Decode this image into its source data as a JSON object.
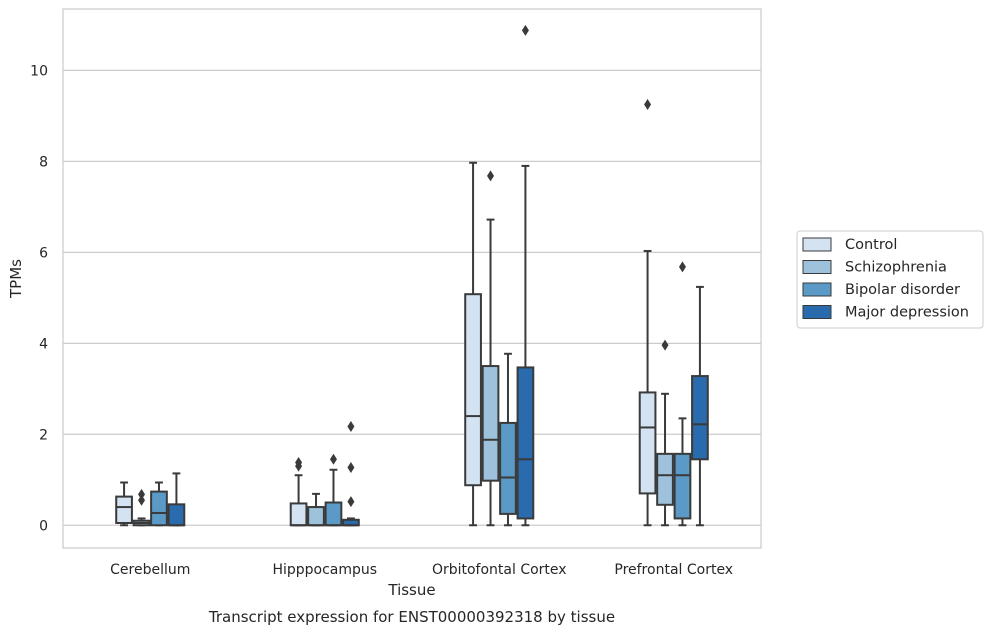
{
  "chart_data": {
    "type": "box",
    "title": "",
    "caption": "Transcript expression for ENST00000392318 by tissue",
    "xlabel": "Tissue",
    "ylabel": "TPMs",
    "ylim": [
      -0.5,
      11.35
    ],
    "yticks": [
      0,
      2,
      4,
      6,
      8,
      10
    ],
    "grid": "horizontal",
    "legend_position": "right",
    "categories": [
      "Cerebellum",
      "Hipppocampus",
      "Orbitofontal Cortex",
      "Prefrontal Cortex"
    ],
    "series": [
      {
        "name": "Control",
        "color": "#d4e3f2",
        "boxes": [
          {
            "whislo": 0.0,
            "q1": 0.05,
            "med": 0.4,
            "q3": 0.63,
            "whishi": 0.94,
            "fliers": []
          },
          {
            "whislo": 0.0,
            "q1": 0.0,
            "med": 0.0,
            "q3": 0.48,
            "whishi": 1.1,
            "fliers": [
              1.3,
              1.38
            ]
          },
          {
            "whislo": 0.0,
            "q1": 0.88,
            "med": 2.4,
            "q3": 5.08,
            "whishi": 7.97,
            "fliers": []
          },
          {
            "whislo": 0.0,
            "q1": 0.7,
            "med": 2.15,
            "q3": 2.92,
            "whishi": 6.03,
            "fliers": [
              9.25
            ]
          }
        ]
      },
      {
        "name": "Schizophrenia",
        "color": "#9ec2dc",
        "boxes": [
          {
            "whislo": 0.0,
            "q1": 0.0,
            "med": 0.05,
            "q3": 0.1,
            "whishi": 0.15,
            "fliers": [
              0.55,
              0.68
            ]
          },
          {
            "whislo": 0.0,
            "q1": 0.0,
            "med": 0.0,
            "q3": 0.4,
            "whishi": 0.69,
            "fliers": []
          },
          {
            "whislo": 0.0,
            "q1": 0.98,
            "med": 1.88,
            "q3": 3.5,
            "whishi": 6.72,
            "fliers": [
              7.68
            ]
          },
          {
            "whislo": 0.0,
            "q1": 0.45,
            "med": 1.1,
            "q3": 1.57,
            "whishi": 2.89,
            "fliers": [
              3.96
            ]
          }
        ]
      },
      {
        "name": "Bipolar disorder",
        "color": "#5b9ac6",
        "boxes": [
          {
            "whislo": 0.0,
            "q1": 0.0,
            "med": 0.27,
            "q3": 0.74,
            "whishi": 0.94,
            "fliers": []
          },
          {
            "whislo": 0.0,
            "q1": 0.0,
            "med": 0.0,
            "q3": 0.5,
            "whishi": 1.22,
            "fliers": [
              1.45
            ]
          },
          {
            "whislo": 0.0,
            "q1": 0.25,
            "med": 1.05,
            "q3": 2.25,
            "whishi": 3.77,
            "fliers": []
          },
          {
            "whislo": 0.0,
            "q1": 0.15,
            "med": 1.1,
            "q3": 1.57,
            "whishi": 2.35,
            "fliers": [
              5.68
            ]
          }
        ]
      },
      {
        "name": "Major depression",
        "color": "#2a6bad",
        "boxes": [
          {
            "whislo": 0.0,
            "q1": 0.0,
            "med": 0.0,
            "q3": 0.46,
            "whishi": 1.14,
            "fliers": []
          },
          {
            "whislo": 0.0,
            "q1": 0.0,
            "med": 0.0,
            "q3": 0.12,
            "whishi": 0.15,
            "fliers": [
              0.52,
              1.27,
              2.17
            ]
          },
          {
            "whislo": 0.0,
            "q1": 0.15,
            "med": 1.45,
            "q3": 3.47,
            "whishi": 7.9,
            "fliers": [
              10.88
            ]
          },
          {
            "whislo": 0.0,
            "q1": 1.45,
            "med": 2.22,
            "q3": 3.28,
            "whishi": 5.24,
            "fliers": []
          }
        ]
      }
    ]
  }
}
